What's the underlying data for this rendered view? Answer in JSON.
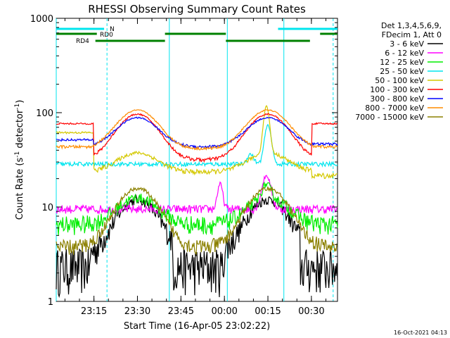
{
  "chart_data": {
    "type": "line",
    "title": "RHESSI Observing Summary Count Rates",
    "xlabel": "Start Time (16-Apr-05 23:02:22)",
    "ylabel_main": "Count Rate (s",
    "ylabel_sup1": "-1",
    "ylabel_mid": " detector",
    "ylabel_sup2": "-1",
    "ylabel_end": ")",
    "yscale": "log",
    "ylim": [
      1,
      1000
    ],
    "y_ticks": [
      {
        "value": 1,
        "label": "1"
      },
      {
        "value": 10,
        "label": "10"
      },
      {
        "value": 100,
        "label": "100"
      },
      {
        "value": 1000,
        "label": "1000"
      }
    ],
    "xlim_minutes": [
      0,
      97
    ],
    "x_ticks": [
      {
        "minute": 13,
        "label": "23:15"
      },
      {
        "minute": 28,
        "label": "23:30"
      },
      {
        "minute": 43,
        "label": "23:45"
      },
      {
        "minute": 58,
        "label": "00:00"
      },
      {
        "minute": 73,
        "label": "00:15"
      },
      {
        "minute": 88,
        "label": "00:30"
      }
    ],
    "legend_header": [
      "Det 1,3,4,5,6,9,",
      "FDecim 1, Att 0"
    ],
    "series": [
      {
        "name": "3 - 6 keV",
        "color": "#000000"
      },
      {
        "name": "6 - 12 keV",
        "color": "#ff00ff"
      },
      {
        "name": "12 - 25 keV",
        "color": "#00ee00"
      },
      {
        "name": "25 - 50 keV",
        "color": "#00e5ee"
      },
      {
        "name": "50 - 100 keV",
        "color": "#d4c800"
      },
      {
        "name": "100 - 300 keV",
        "color": "#ff0000"
      },
      {
        "name": "300 - 800 keV",
        "color": "#0000ff"
      },
      {
        "name": "800 - 7000 keV",
        "color": "#ff8c00"
      },
      {
        "name": "7000 - 15000 keV",
        "color": "#8b8000"
      }
    ],
    "flags": [
      {
        "name": "N",
        "color": "#00e5ee",
        "intervals": [
          [
            0,
            16.5
          ],
          [
            76.5,
            97
          ]
        ]
      },
      {
        "name": "RD0",
        "color": "#008000",
        "intervals": [
          [
            0,
            14
          ],
          [
            37.5,
            58.5
          ],
          [
            91,
            97
          ]
        ]
      },
      {
        "name": "RD4",
        "color": "#008000",
        "intervals": [
          [
            13.5,
            37.5
          ],
          [
            58.5,
            87.5
          ]
        ]
      }
    ],
    "events": [
      {
        "minute": 0,
        "color": "#00e5ee",
        "style": "solid"
      },
      {
        "minute": 17.5,
        "color": "#00e5ee",
        "style": "dashed"
      },
      {
        "minute": 39,
        "color": "#00e5ee",
        "style": "solid"
      },
      {
        "minute": 59,
        "color": "#00e5ee",
        "style": "solid"
      },
      {
        "minute": 78.5,
        "color": "#00e5ee",
        "style": "solid"
      },
      {
        "minute": 95.5,
        "color": "#00e5ee",
        "style": "dashed"
      }
    ]
  },
  "timestamp": "16-Oct-2021 04:13"
}
